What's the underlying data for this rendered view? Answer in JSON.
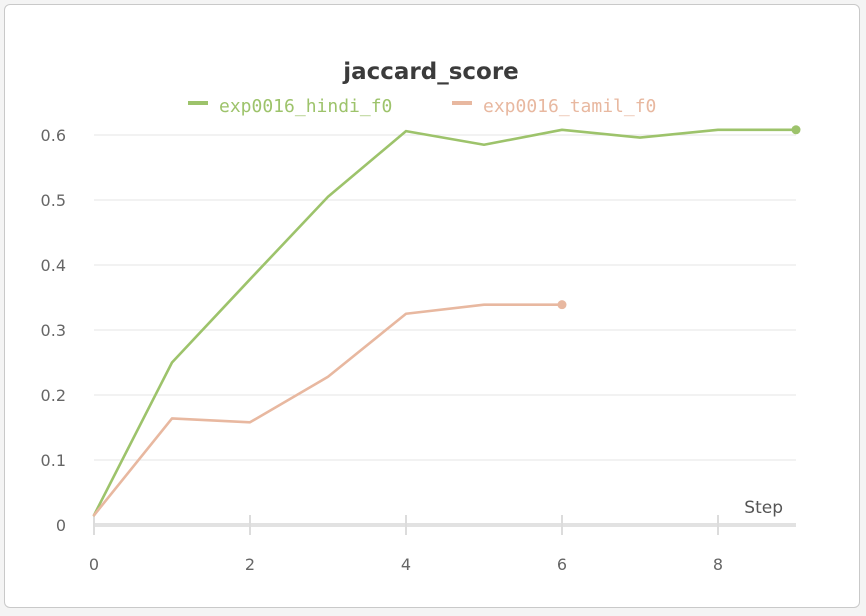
{
  "chart_data": {
    "type": "line",
    "title": "jaccard_score",
    "xlabel": "Step",
    "ylabel": "",
    "xlim": [
      0,
      9.5
    ],
    "ylim": [
      0,
      0.65
    ],
    "x_ticks": [
      0,
      2,
      4,
      6,
      8
    ],
    "y_ticks": [
      0,
      0.1,
      0.2,
      0.3,
      0.4,
      0.5,
      0.6
    ],
    "grid": true,
    "legend_position": "top",
    "series": [
      {
        "name": "exp0016_hindi_f0",
        "color": "#9dc36b",
        "x": [
          0,
          1,
          2,
          3,
          4,
          5,
          6,
          7,
          8,
          9
        ],
        "values": [
          0.015,
          0.25,
          0.378,
          0.505,
          0.606,
          0.585,
          0.608,
          0.596,
          0.608,
          0.608
        ]
      },
      {
        "name": "exp0016_tamil_f0",
        "color": "#e8b8a0",
        "x": [
          0,
          1,
          2,
          3,
          4,
          5,
          6
        ],
        "values": [
          0.015,
          0.164,
          0.158,
          0.228,
          0.325,
          0.339,
          0.339
        ]
      }
    ]
  }
}
